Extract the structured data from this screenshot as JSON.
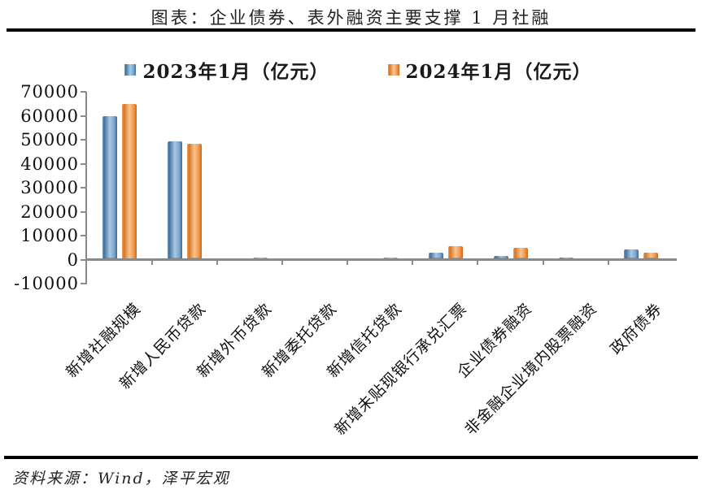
{
  "header": {
    "title": "图表：企业债券、表外融资主要支撑 1 月社融"
  },
  "chart_data": {
    "type": "bar",
    "title": "图表：企业债券、表外融资主要支撑 1 月社融",
    "unit": "亿元",
    "categories": [
      "新增社融规模",
      "新增人民币贷款",
      "新增外币贷款",
      "新增委托贷款",
      "新增信托贷款",
      "新增未贴现银行承兑汇票",
      "企业债券融资",
      "非金融企业境内股票融资",
      "政府债券"
    ],
    "series": [
      {
        "name": "2023年1月（亿元）",
        "color": "#5B88AF",
        "values": [
          59840,
          49300,
          -131,
          584,
          -62,
          2963,
          1486,
          964,
          4140
        ]
      },
      {
        "name": "2024年1月（亿元）",
        "color": "#ED7D31",
        "values": [
          65000,
          48400,
          989,
          -359,
          732,
          5635,
          4835,
          422,
          2947
        ]
      }
    ],
    "ylim": [
      -10000,
      70000
    ],
    "yticks": [
      70000,
      60000,
      50000,
      40000,
      30000,
      20000,
      10000,
      0,
      -10000
    ],
    "xlabel": "",
    "ylabel": "",
    "grid": false,
    "legend_position": "top",
    "axis_color": "#8a8a8a"
  },
  "footer": {
    "source": "资料来源：Wind，泽平宏观"
  }
}
